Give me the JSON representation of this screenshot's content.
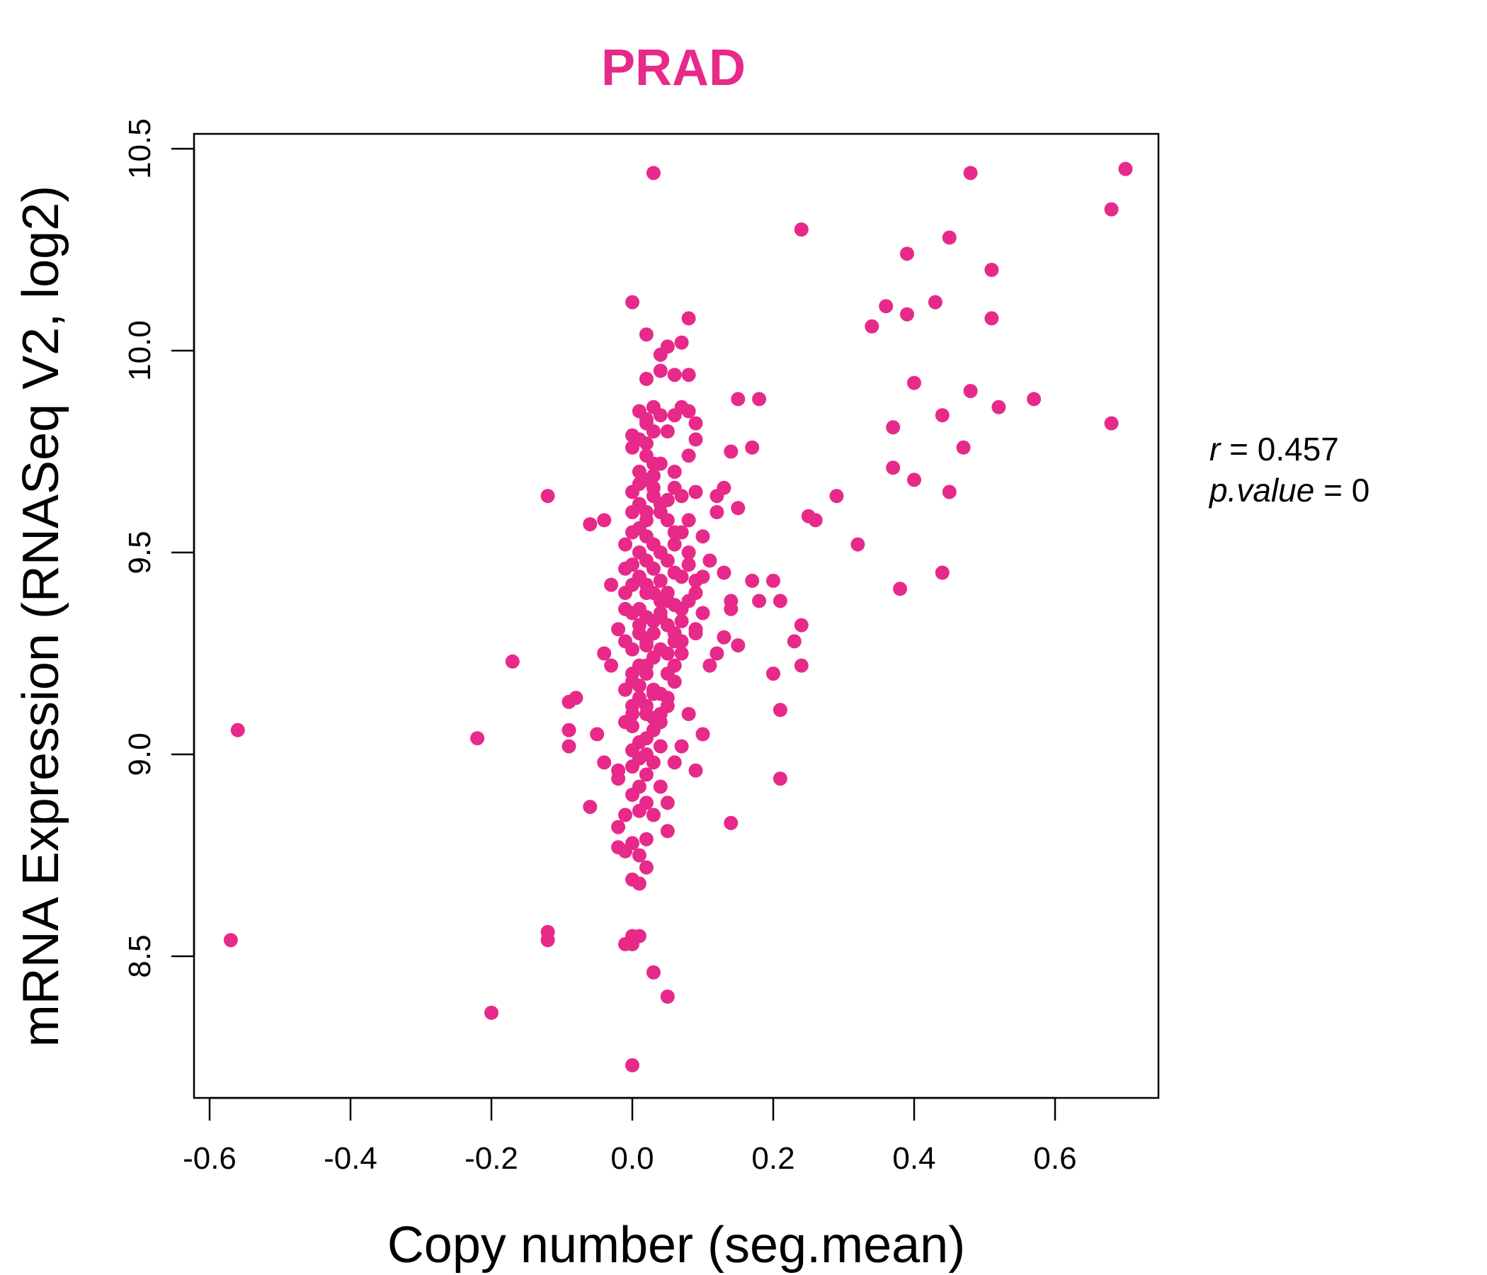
{
  "chart_data": {
    "type": "scatter",
    "title": "PRAD",
    "xlabel": "Copy number (seg.mean)",
    "ylabel": "mRNA Expression (RNASeq V2, log2)",
    "xlim": [
      -0.62,
      0.75
    ],
    "ylim": [
      8.2,
      10.55
    ],
    "xticks": [
      "-0.6",
      "-0.4",
      "-0.2",
      "0.0",
      "0.2",
      "0.4",
      "0.6"
    ],
    "yticks": [
      "8.5",
      "9.0",
      "9.5",
      "10.0",
      "10.5"
    ],
    "grid": false,
    "legend": "none",
    "point_color": "#E7298A",
    "annotation": {
      "r_label": "r = 0.457",
      "p_label": "p.value = 0",
      "r_var": "r",
      "r_val": "0.457",
      "p_var": "p.value",
      "p_val": "0"
    },
    "points": [
      [
        0.03,
        10.44
      ],
      [
        0.48,
        10.44
      ],
      [
        0.7,
        10.45
      ],
      [
        0.68,
        10.35
      ],
      [
        0.24,
        10.3
      ],
      [
        0.45,
        10.28
      ],
      [
        0.39,
        10.24
      ],
      [
        0.51,
        10.2
      ],
      [
        0.43,
        10.12
      ],
      [
        0.36,
        10.11
      ],
      [
        0.39,
        10.09
      ],
      [
        0.34,
        10.06
      ],
      [
        0.51,
        10.08
      ],
      [
        0.0,
        10.12
      ],
      [
        0.08,
        10.08
      ],
      [
        0.02,
        10.04
      ],
      [
        0.07,
        10.02
      ],
      [
        0.05,
        10.01
      ],
      [
        0.04,
        9.99
      ],
      [
        0.04,
        9.95
      ],
      [
        0.06,
        9.94
      ],
      [
        0.08,
        9.94
      ],
      [
        0.02,
        9.93
      ],
      [
        0.4,
        9.92
      ],
      [
        0.48,
        9.9
      ],
      [
        0.57,
        9.88
      ],
      [
        0.52,
        9.86
      ],
      [
        0.44,
        9.84
      ],
      [
        0.37,
        9.81
      ],
      [
        0.68,
        9.82
      ],
      [
        0.15,
        9.88
      ],
      [
        0.18,
        9.88
      ],
      [
        0.07,
        9.86
      ],
      [
        0.08,
        9.85
      ],
      [
        0.06,
        9.84
      ],
      [
        0.09,
        9.82
      ],
      [
        0.03,
        9.86
      ],
      [
        0.01,
        9.85
      ],
      [
        0.02,
        9.83
      ],
      [
        0.04,
        9.84
      ],
      [
        0.05,
        9.8
      ],
      [
        0.0,
        9.79
      ],
      [
        0.09,
        9.78
      ],
      [
        0.47,
        9.76
      ],
      [
        0.17,
        9.76
      ],
      [
        0.14,
        9.75
      ],
      [
        0.08,
        9.74
      ],
      [
        0.02,
        9.77
      ],
      [
        0.0,
        9.76
      ],
      [
        0.03,
        9.72
      ],
      [
        0.37,
        9.71
      ],
      [
        0.4,
        9.68
      ],
      [
        0.45,
        9.65
      ],
      [
        0.06,
        9.7
      ],
      [
        0.29,
        9.64
      ],
      [
        0.25,
        9.59
      ],
      [
        0.26,
        9.58
      ],
      [
        0.32,
        9.52
      ],
      [
        0.13,
        9.66
      ],
      [
        0.12,
        9.64
      ],
      [
        0.15,
        9.61
      ],
      [
        0.09,
        9.65
      ],
      [
        0.07,
        9.64
      ],
      [
        0.03,
        9.66
      ],
      [
        0.01,
        9.67
      ],
      [
        -0.12,
        9.64
      ],
      [
        -0.06,
        9.57
      ],
      [
        -0.04,
        9.58
      ],
      [
        0.1,
        9.54
      ],
      [
        0.12,
        9.6
      ],
      [
        0.08,
        9.58
      ],
      [
        0.04,
        9.62
      ],
      [
        0.02,
        9.58
      ],
      [
        0.0,
        9.6
      ],
      [
        0.06,
        9.52
      ],
      [
        0.11,
        9.48
      ],
      [
        0.08,
        9.47
      ],
      [
        0.09,
        9.43
      ],
      [
        0.1,
        9.44
      ],
      [
        0.13,
        9.45
      ],
      [
        0.17,
        9.43
      ],
      [
        0.2,
        9.43
      ],
      [
        0.38,
        9.41
      ],
      [
        0.44,
        9.45
      ],
      [
        0.14,
        9.38
      ],
      [
        0.18,
        9.38
      ],
      [
        0.21,
        9.38
      ],
      [
        0.14,
        9.36
      ],
      [
        0.09,
        9.4
      ],
      [
        0.07,
        9.36
      ],
      [
        0.05,
        9.38
      ],
      [
        0.02,
        9.4
      ],
      [
        0.0,
        9.42
      ],
      [
        -0.03,
        9.42
      ],
      [
        0.04,
        9.34
      ],
      [
        0.01,
        9.32
      ],
      [
        0.03,
        9.3
      ],
      [
        0.06,
        9.3
      ],
      [
        0.09,
        9.31
      ],
      [
        0.13,
        9.29
      ],
      [
        0.15,
        9.27
      ],
      [
        0.12,
        9.25
      ],
      [
        0.24,
        9.32
      ],
      [
        0.23,
        9.28
      ],
      [
        -0.02,
        9.31
      ],
      [
        -0.01,
        9.28
      ],
      [
        0.02,
        9.27
      ],
      [
        0.05,
        9.25
      ],
      [
        0.07,
        9.28
      ],
      [
        -0.04,
        9.25
      ],
      [
        -0.03,
        9.22
      ],
      [
        0.0,
        9.2
      ],
      [
        0.02,
        9.22
      ],
      [
        0.06,
        9.22
      ],
      [
        0.11,
        9.22
      ],
      [
        0.24,
        9.22
      ],
      [
        0.2,
        9.2
      ],
      [
        -0.17,
        9.23
      ],
      [
        0.01,
        9.17
      ],
      [
        0.03,
        9.15
      ],
      [
        0.05,
        9.14
      ],
      [
        -0.09,
        9.13
      ],
      [
        -0.08,
        9.14
      ],
      [
        0.0,
        9.12
      ],
      [
        0.02,
        9.1
      ],
      [
        0.04,
        9.08
      ],
      [
        0.08,
        9.1
      ],
      [
        0.21,
        9.11
      ],
      [
        0.0,
        9.07
      ],
      [
        0.03,
        9.06
      ],
      [
        -0.09,
        9.06
      ],
      [
        -0.05,
        9.05
      ],
      [
        -0.22,
        9.04
      ],
      [
        -0.56,
        9.06
      ],
      [
        0.1,
        9.05
      ],
      [
        0.01,
        9.03
      ],
      [
        0.04,
        9.02
      ],
      [
        -0.09,
        9.02
      ],
      [
        0.07,
        9.02
      ],
      [
        -0.04,
        8.98
      ],
      [
        -0.02,
        8.96
      ],
      [
        0.0,
        8.97
      ],
      [
        0.02,
        8.95
      ],
      [
        0.06,
        8.98
      ],
      [
        0.09,
        8.96
      ],
      [
        0.21,
        8.94
      ],
      [
        -0.02,
        8.94
      ],
      [
        0.01,
        8.92
      ],
      [
        0.04,
        8.92
      ],
      [
        0.0,
        8.9
      ],
      [
        0.02,
        8.88
      ],
      [
        0.05,
        8.88
      ],
      [
        -0.06,
        8.87
      ],
      [
        0.01,
        8.86
      ],
      [
        0.03,
        8.85
      ],
      [
        -0.01,
        8.85
      ],
      [
        -0.02,
        8.82
      ],
      [
        0.14,
        8.83
      ],
      [
        0.05,
        8.81
      ],
      [
        0.02,
        8.79
      ],
      [
        0.0,
        8.78
      ],
      [
        -0.02,
        8.77
      ],
      [
        -0.01,
        8.76
      ],
      [
        0.01,
        8.75
      ],
      [
        0.02,
        8.72
      ],
      [
        0.0,
        8.69
      ],
      [
        0.01,
        8.68
      ],
      [
        -0.12,
        8.56
      ],
      [
        -0.12,
        8.54
      ],
      [
        -0.57,
        8.54
      ],
      [
        0.0,
        8.55
      ],
      [
        0.01,
        8.55
      ],
      [
        0.0,
        8.53
      ],
      [
        -0.01,
        8.53
      ],
      [
        0.03,
        8.46
      ],
      [
        0.05,
        8.4
      ],
      [
        -0.2,
        8.36
      ],
      [
        0.0,
        8.23
      ],
      [
        0.01,
        9.5
      ],
      [
        0.02,
        9.48
      ],
      [
        0.03,
        9.46
      ],
      [
        0.0,
        9.47
      ],
      [
        0.01,
        9.44
      ],
      [
        0.02,
        9.42
      ],
      [
        0.03,
        9.4
      ],
      [
        0.04,
        9.38
      ],
      [
        0.01,
        9.36
      ],
      [
        0.02,
        9.34
      ],
      [
        0.0,
        9.35
      ],
      [
        0.03,
        9.33
      ],
      [
        0.01,
        9.3
      ],
      [
        0.02,
        9.28
      ],
      [
        0.0,
        9.26
      ],
      [
        0.03,
        9.24
      ],
      [
        0.01,
        9.22
      ],
      [
        0.02,
        9.2
      ],
      [
        0.0,
        9.18
      ],
      [
        0.03,
        9.16
      ],
      [
        0.01,
        9.14
      ],
      [
        0.02,
        9.12
      ],
      [
        0.0,
        9.1
      ],
      [
        0.03,
        9.09
      ],
      [
        0.01,
        9.56
      ],
      [
        0.02,
        9.54
      ],
      [
        0.03,
        9.52
      ],
      [
        0.0,
        9.55
      ],
      [
        0.01,
        9.62
      ],
      [
        0.02,
        9.6
      ],
      [
        0.03,
        9.64
      ],
      [
        0.0,
        9.65
      ],
      [
        0.02,
        9.68
      ],
      [
        0.01,
        9.7
      ],
      [
        0.04,
        9.72
      ],
      [
        0.02,
        9.74
      ],
      [
        0.01,
        9.78
      ],
      [
        0.03,
        9.8
      ],
      [
        0.02,
        9.82
      ],
      [
        0.04,
        9.5
      ],
      [
        0.05,
        9.48
      ],
      [
        0.06,
        9.45
      ],
      [
        0.04,
        9.43
      ],
      [
        0.05,
        9.4
      ],
      [
        0.06,
        9.37
      ],
      [
        0.04,
        9.35
      ],
      [
        0.05,
        9.32
      ],
      [
        0.06,
        9.28
      ],
      [
        0.04,
        9.26
      ],
      [
        0.05,
        9.2
      ],
      [
        0.06,
        9.18
      ],
      [
        0.04,
        9.15
      ],
      [
        0.05,
        9.12
      ],
      [
        0.04,
        9.1
      ],
      [
        0.06,
        9.55
      ],
      [
        0.05,
        9.58
      ],
      [
        0.04,
        9.6
      ],
      [
        0.05,
        9.63
      ],
      [
        0.06,
        9.66
      ],
      [
        0.03,
        9.69
      ],
      [
        0.02,
        9.0
      ],
      [
        0.01,
        8.99
      ],
      [
        0.03,
        8.98
      ],
      [
        0.0,
        9.01
      ],
      [
        0.02,
        9.04
      ],
      [
        -0.01,
        9.4
      ],
      [
        -0.01,
        9.46
      ],
      [
        -0.01,
        9.52
      ],
      [
        -0.01,
        9.36
      ],
      [
        -0.01,
        9.16
      ],
      [
        -0.01,
        9.08
      ],
      [
        0.07,
        9.33
      ],
      [
        0.08,
        9.38
      ],
      [
        0.07,
        9.44
      ],
      [
        0.08,
        9.5
      ],
      [
        0.07,
        9.55
      ],
      [
        0.09,
        9.3
      ],
      [
        0.1,
        9.35
      ],
      [
        0.07,
        9.25
      ]
    ]
  }
}
